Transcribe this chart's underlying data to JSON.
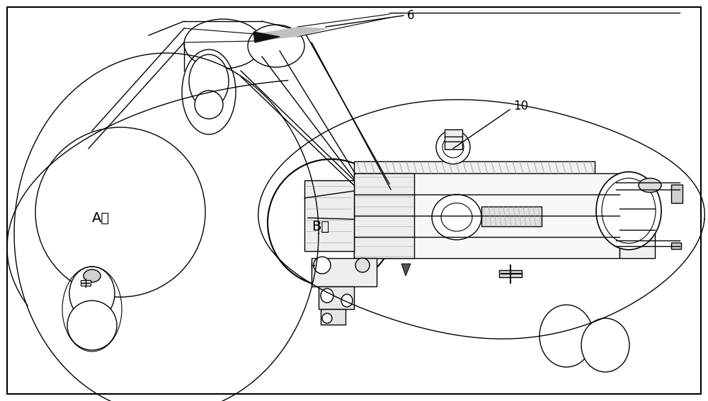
{
  "bg_color": "#ffffff",
  "line_color": "#000000",
  "label_6": "6",
  "label_10": "10",
  "label_A": "A轴",
  "label_B": "B轴",
  "label_fontsize": 14
}
